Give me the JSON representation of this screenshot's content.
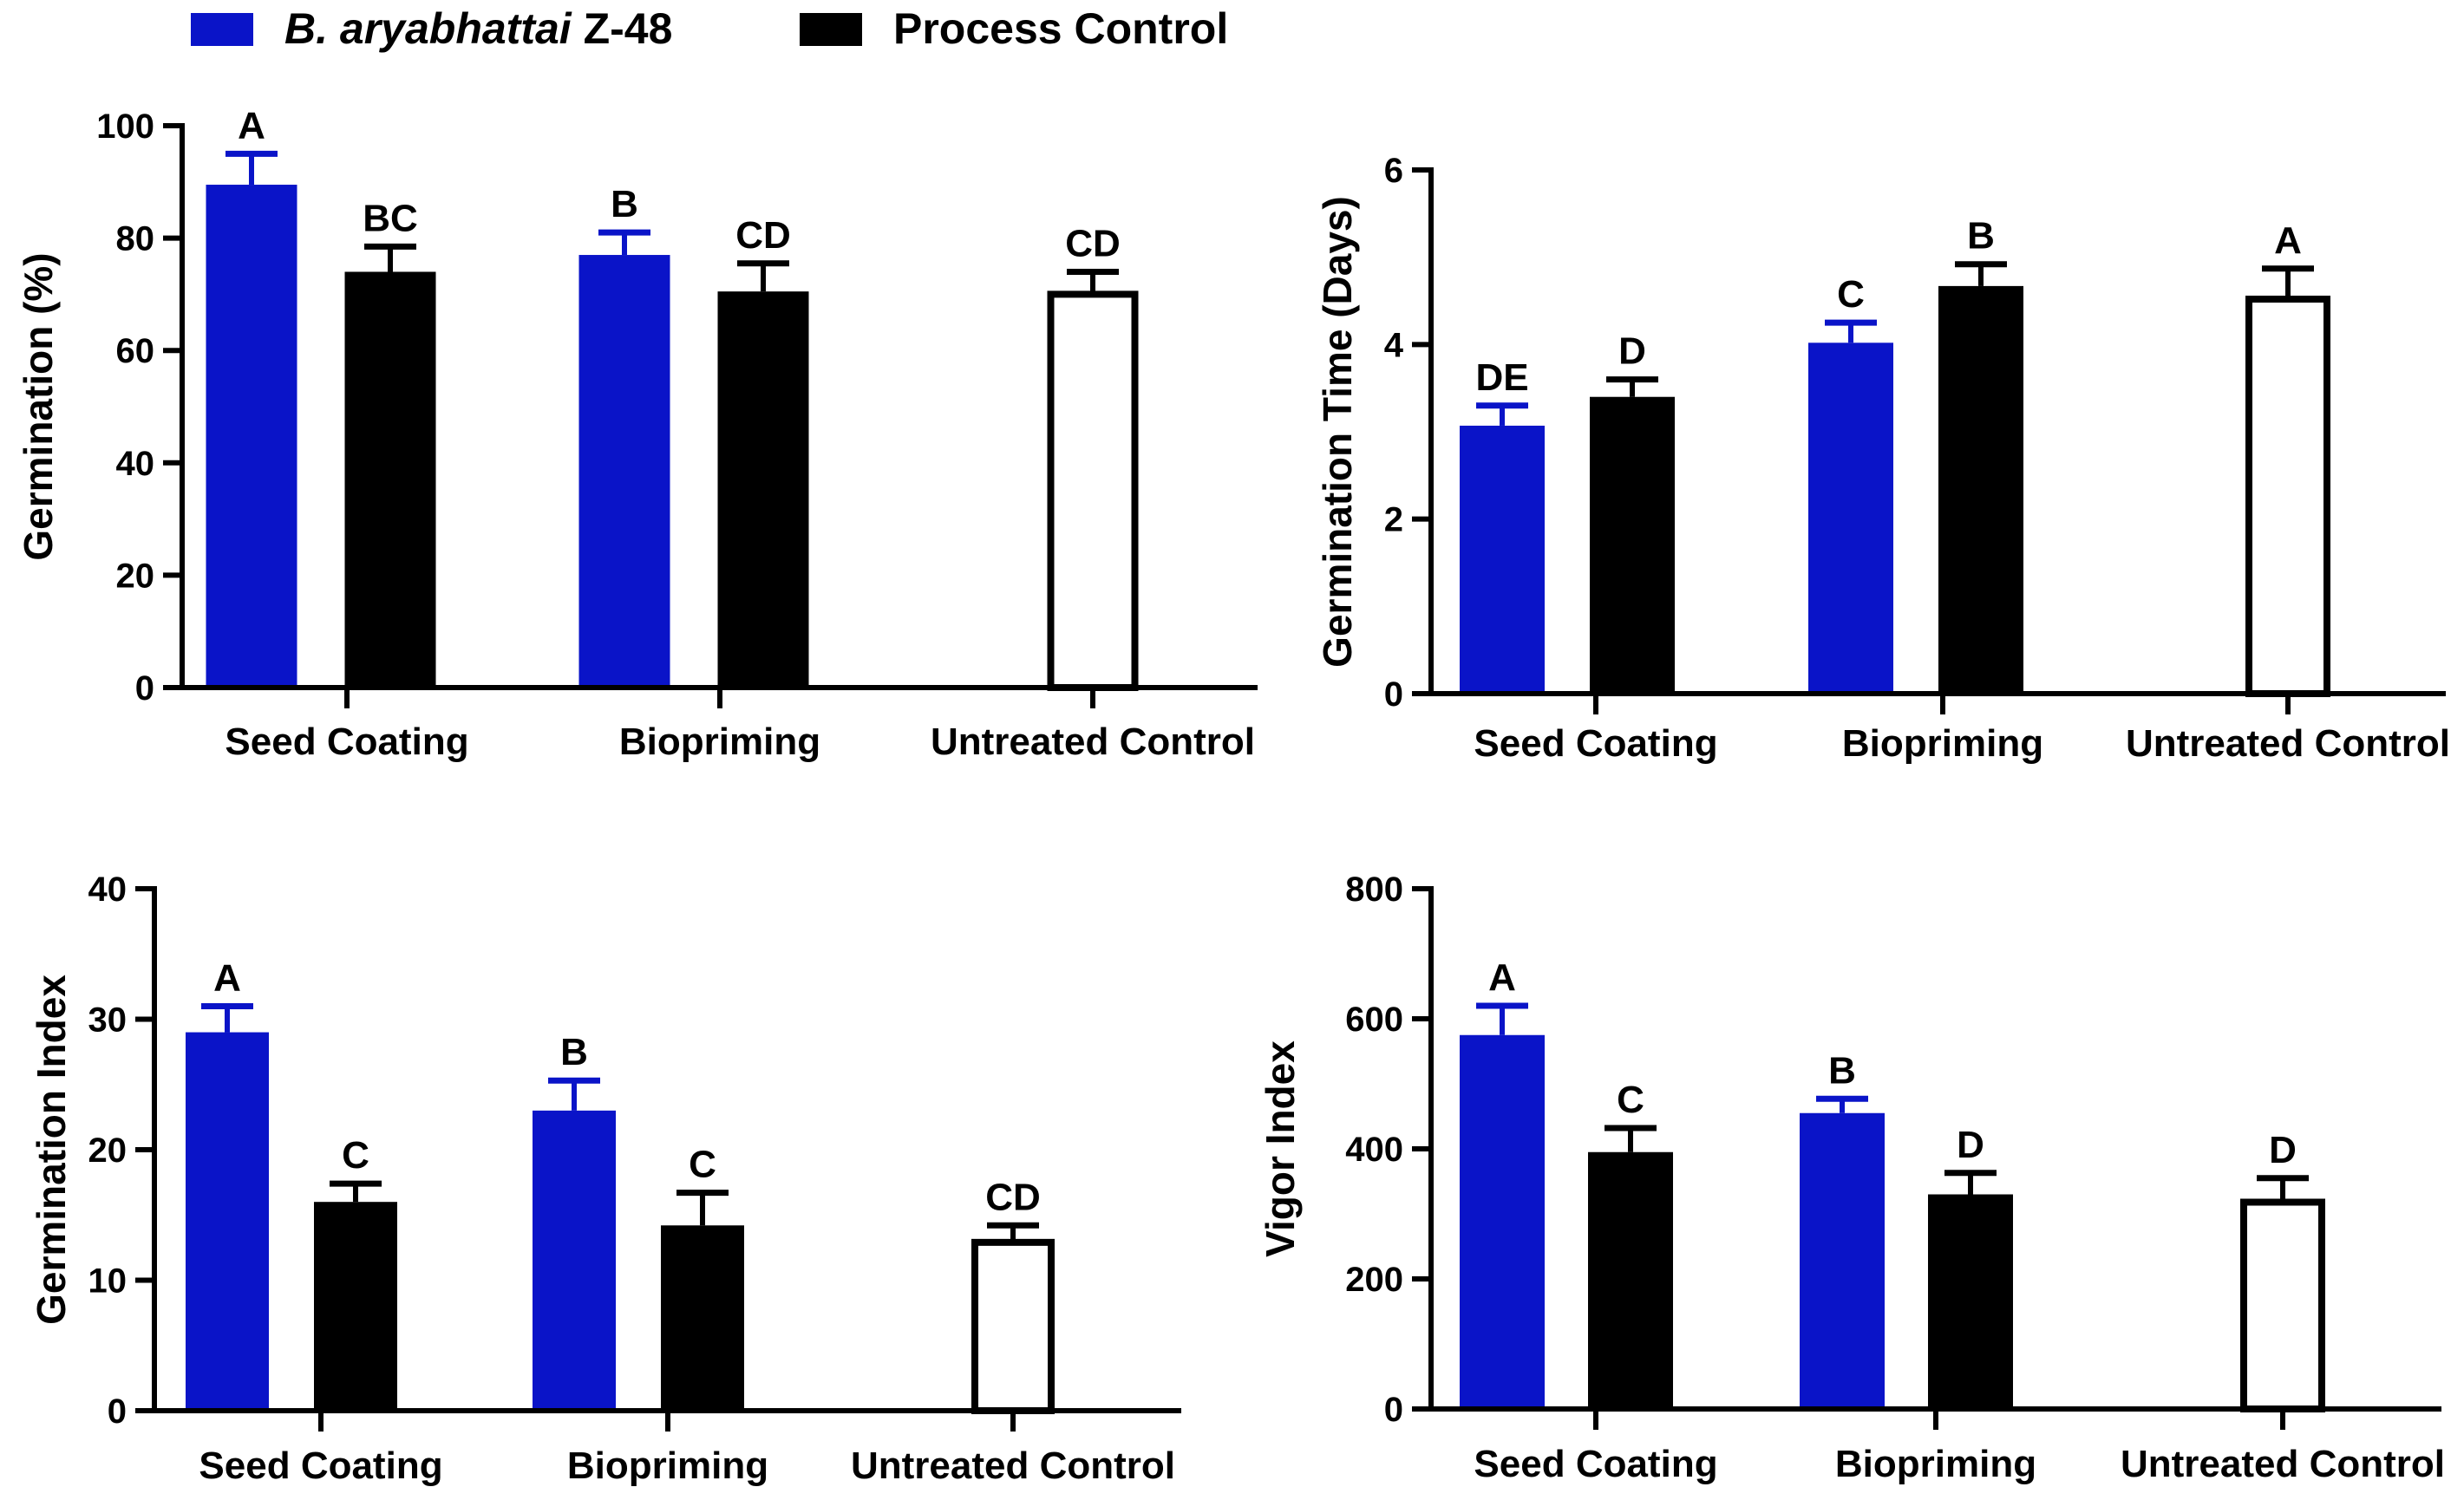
{
  "legend": {
    "series": [
      {
        "name_italic": "B. aryabhattai",
        "name_rest": " Z-48",
        "color": "#0a14c8"
      },
      {
        "name_italic": "",
        "name_rest": "Process Control",
        "color": "#000000"
      }
    ],
    "untreated_fill": "#ffffff"
  },
  "chart_data": [
    {
      "type": "bar",
      "title": "",
      "ylabel": "Germination (%)",
      "ylim": [
        0,
        100
      ],
      "yticks": [
        0,
        20,
        40,
        60,
        80,
        100
      ],
      "categories": [
        "Seed Coating",
        "Biopriming",
        "Untreated Control"
      ],
      "series": [
        {
          "name": "B. aryabhattai Z-48",
          "values": [
            89.5,
            77,
            null
          ],
          "errors": [
            5.5,
            4,
            null
          ],
          "labels": [
            "A",
            "B",
            null
          ]
        },
        {
          "name": "Process Control",
          "values": [
            74,
            70.5,
            null
          ],
          "errors": [
            4.5,
            5,
            null
          ],
          "labels": [
            "BC",
            "CD",
            null
          ]
        },
        {
          "name": "Untreated Control",
          "values": [
            null,
            null,
            70
          ],
          "errors": [
            null,
            null,
            4
          ],
          "labels": [
            null,
            null,
            "CD"
          ]
        }
      ]
    },
    {
      "type": "bar",
      "title": "",
      "ylabel": "Germination Time (Days)",
      "ylim": [
        0,
        6
      ],
      "yticks": [
        0,
        2,
        4,
        6
      ],
      "categories": [
        "Seed Coating",
        "Biopriming",
        "Untreated Control"
      ],
      "series": [
        {
          "name": "B. aryabhattai Z-48",
          "values": [
            3.07,
            4.02,
            null
          ],
          "errors": [
            0.23,
            0.23,
            null
          ],
          "labels": [
            "DE",
            "C",
            null
          ]
        },
        {
          "name": "Process Control",
          "values": [
            3.4,
            4.67,
            null
          ],
          "errors": [
            0.2,
            0.25,
            null
          ],
          "labels": [
            "D",
            "B",
            null
          ]
        },
        {
          "name": "Untreated Control",
          "values": [
            null,
            null,
            4.52
          ],
          "errors": [
            null,
            null,
            0.35
          ],
          "labels": [
            null,
            null,
            "A"
          ]
        }
      ]
    },
    {
      "type": "bar",
      "title": "",
      "ylabel": "Germination Index",
      "ylim": [
        0,
        40
      ],
      "yticks": [
        0,
        10,
        20,
        30,
        40
      ],
      "categories": [
        "Seed Coating",
        "Biopriming",
        "Untreated Control"
      ],
      "series": [
        {
          "name": "B. aryabhattai Z-48",
          "values": [
            29,
            23,
            null
          ],
          "errors": [
            2,
            2.3,
            null
          ],
          "labels": [
            "A",
            "B",
            null
          ]
        },
        {
          "name": "Process Control",
          "values": [
            16,
            14.2,
            null
          ],
          "errors": [
            1.4,
            2.5,
            null
          ],
          "labels": [
            "C",
            "C",
            null
          ]
        },
        {
          "name": "Untreated Control",
          "values": [
            null,
            null,
            12.9
          ],
          "errors": [
            null,
            null,
            1.3
          ],
          "labels": [
            null,
            null,
            "CD"
          ]
        }
      ]
    },
    {
      "type": "bar",
      "title": "",
      "ylabel": "Vigor Index",
      "ylim": [
        0,
        800
      ],
      "yticks": [
        0,
        200,
        400,
        600,
        800
      ],
      "categories": [
        "Seed Coating",
        "Biopriming",
        "Untreated Control"
      ],
      "series": [
        {
          "name": "B. aryabhattai Z-48",
          "values": [
            575,
            455,
            null
          ],
          "errors": [
            45,
            22,
            null
          ],
          "labels": [
            "A",
            "B",
            null
          ]
        },
        {
          "name": "Process Control",
          "values": [
            395,
            330,
            null
          ],
          "errors": [
            37,
            33,
            null
          ],
          "labels": [
            "C",
            "D",
            null
          ]
        },
        {
          "name": "Untreated Control",
          "values": [
            null,
            null,
            318
          ],
          "errors": [
            null,
            null,
            37
          ],
          "labels": [
            null,
            null,
            "D"
          ]
        }
      ]
    }
  ]
}
